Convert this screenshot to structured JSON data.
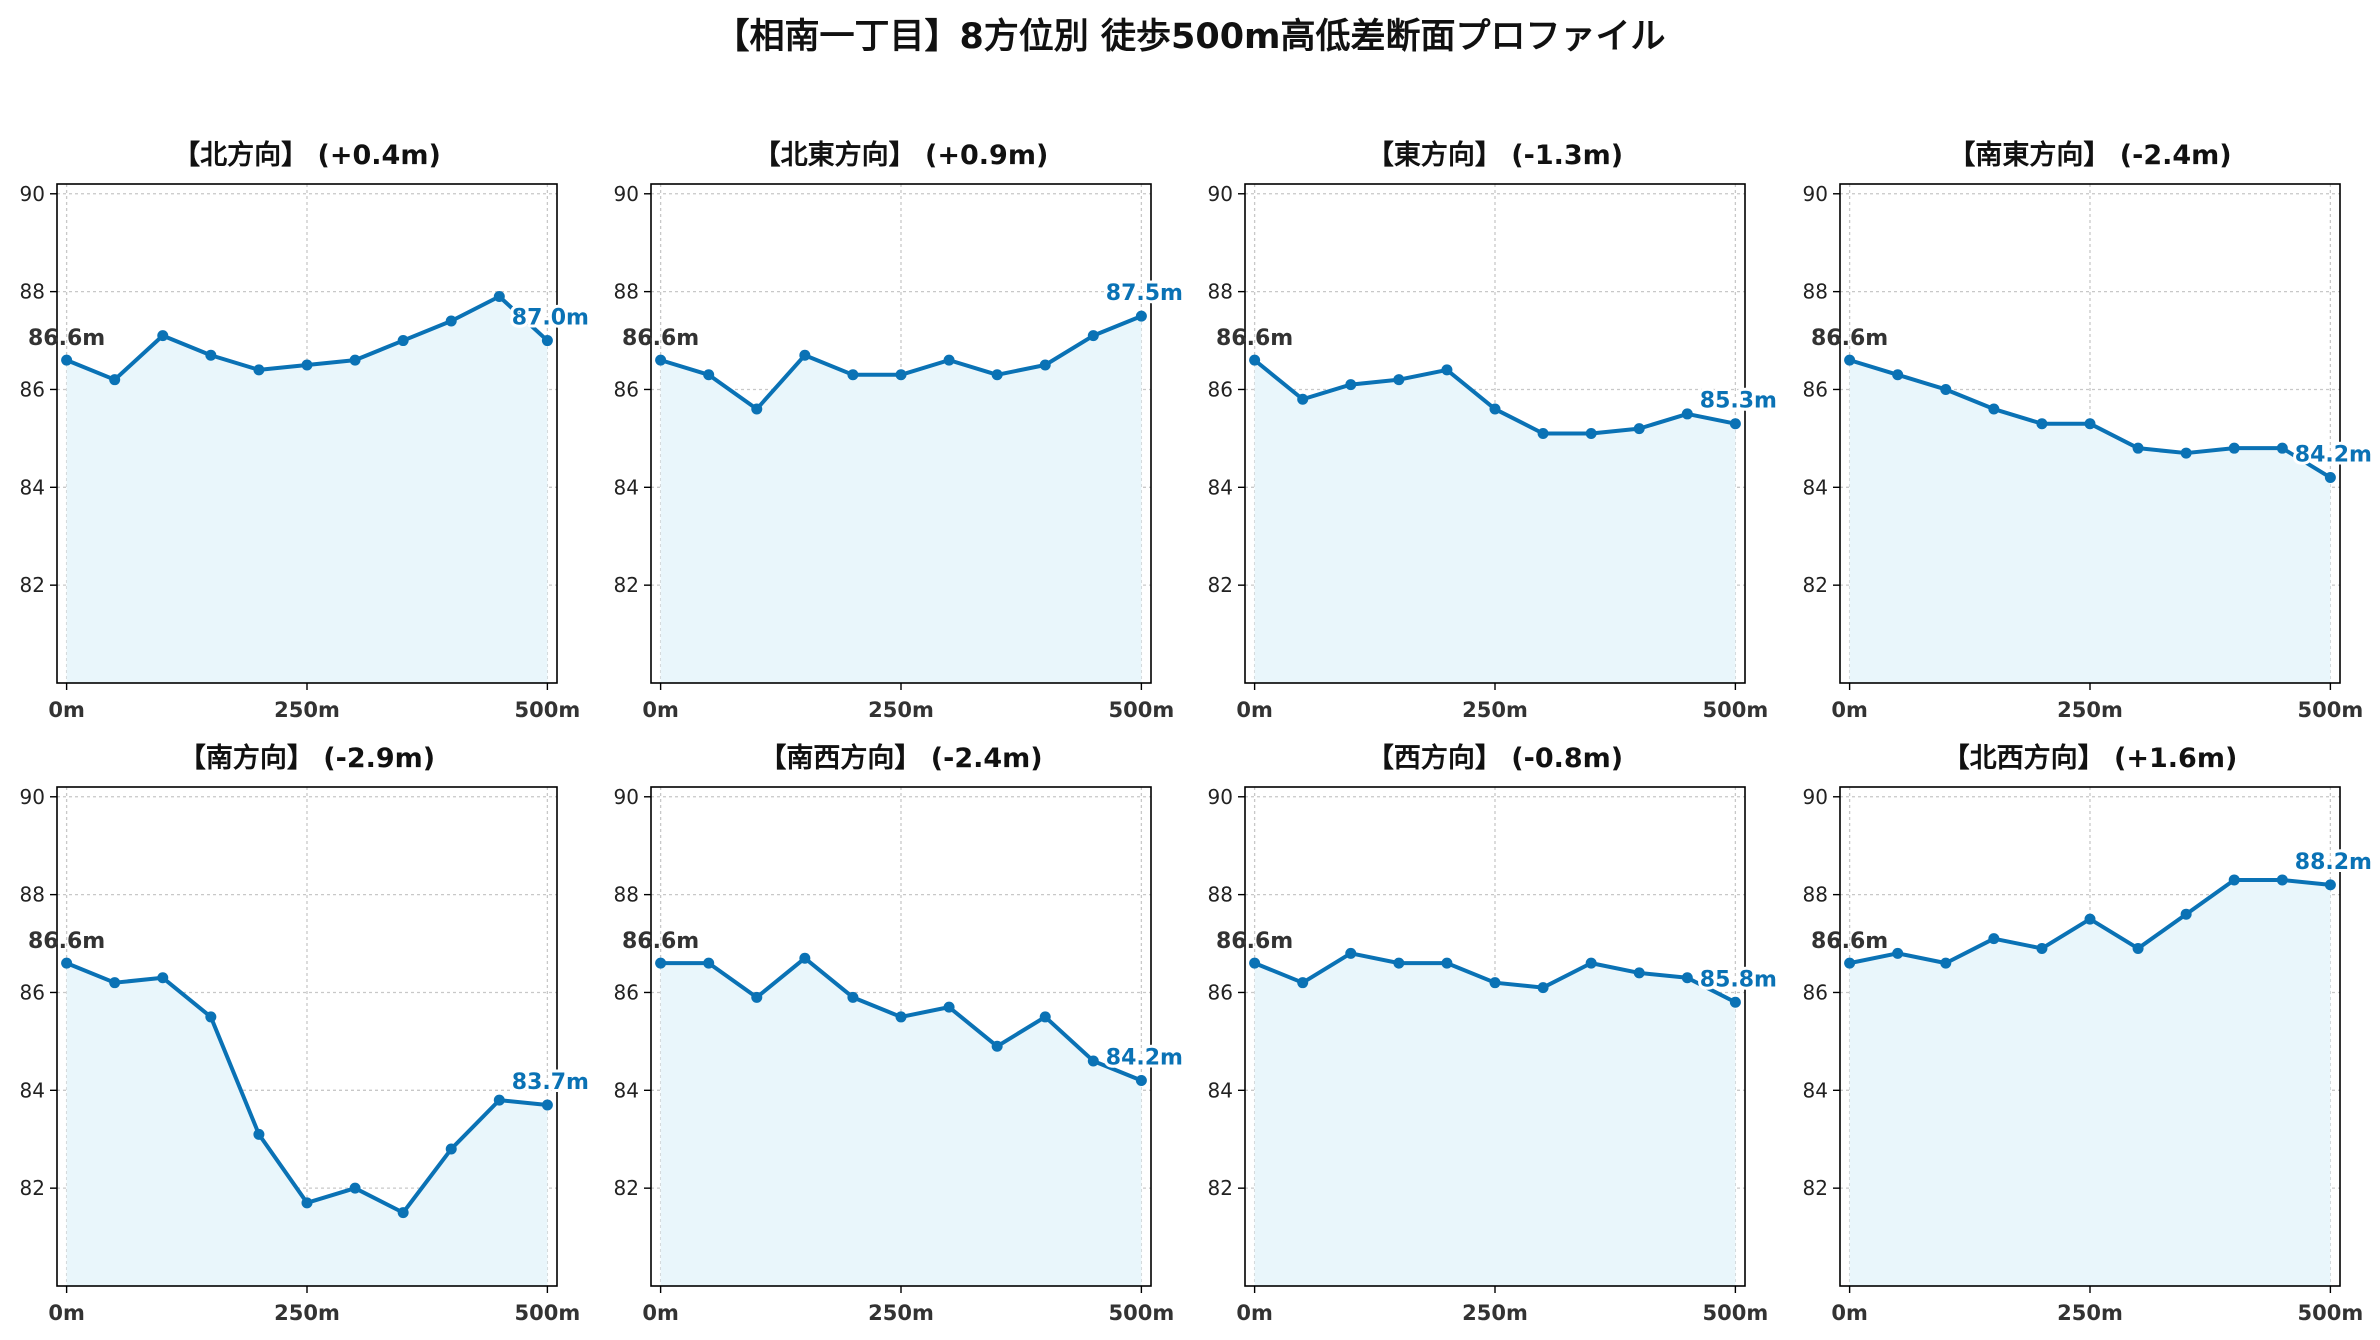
{
  "title": "【相南一丁目】8方位別 徒歩500m高低差断面プロファイル",
  "colors": {
    "line": "#0a72b5",
    "fill": "#e9f6fb",
    "grid": "#c8c8c8",
    "start_label": "#333333"
  },
  "chart_data": [
    {
      "type": "area",
      "title": "【北方向】 (+0.4m)",
      "x": [
        0,
        50,
        100,
        150,
        200,
        250,
        300,
        350,
        400,
        450,
        500
      ],
      "values": [
        86.6,
        86.2,
        87.1,
        86.7,
        86.4,
        86.5,
        86.6,
        87.0,
        87.4,
        87.9,
        87.0
      ],
      "start_label": "86.6m",
      "end_label": "87.0m",
      "xticks": [
        "0m",
        "250m",
        "500m"
      ],
      "yticks": [
        "82",
        "84",
        "86",
        "88",
        "90"
      ],
      "ylim": [
        80,
        90.2
      ],
      "grid": true
    },
    {
      "type": "area",
      "title": "【北東方向】 (+0.9m)",
      "x": [
        0,
        50,
        100,
        150,
        200,
        250,
        300,
        350,
        400,
        450,
        500
      ],
      "values": [
        86.6,
        86.3,
        85.6,
        86.7,
        86.3,
        86.3,
        86.6,
        86.3,
        86.5,
        87.1,
        87.5
      ],
      "start_label": "86.6m",
      "end_label": "87.5m",
      "xticks": [
        "0m",
        "250m",
        "500m"
      ],
      "yticks": [
        "82",
        "84",
        "86",
        "88",
        "90"
      ],
      "ylim": [
        80,
        90.2
      ],
      "grid": true
    },
    {
      "type": "area",
      "title": "【東方向】 (-1.3m)",
      "x": [
        0,
        50,
        100,
        150,
        200,
        250,
        300,
        350,
        400,
        450,
        500
      ],
      "values": [
        86.6,
        85.8,
        86.1,
        86.2,
        86.4,
        85.6,
        85.1,
        85.1,
        85.2,
        85.5,
        85.3
      ],
      "start_label": "86.6m",
      "end_label": "85.3m",
      "xticks": [
        "0m",
        "250m",
        "500m"
      ],
      "yticks": [
        "82",
        "84",
        "86",
        "88",
        "90"
      ],
      "ylim": [
        80,
        90.2
      ],
      "grid": true
    },
    {
      "type": "area",
      "title": "【南東方向】 (-2.4m)",
      "x": [
        0,
        50,
        100,
        150,
        200,
        250,
        300,
        350,
        400,
        450,
        500
      ],
      "values": [
        86.6,
        86.3,
        86.0,
        85.6,
        85.3,
        85.3,
        84.8,
        84.7,
        84.8,
        84.8,
        84.2
      ],
      "start_label": "86.6m",
      "end_label": "84.2m",
      "xticks": [
        "0m",
        "250m",
        "500m"
      ],
      "yticks": [
        "82",
        "84",
        "86",
        "88",
        "90"
      ],
      "ylim": [
        80,
        90.2
      ],
      "grid": true
    },
    {
      "type": "area",
      "title": "【南方向】 (-2.9m)",
      "x": [
        0,
        50,
        100,
        150,
        200,
        250,
        300,
        350,
        400,
        450,
        500
      ],
      "values": [
        86.6,
        86.2,
        86.3,
        85.5,
        83.1,
        81.7,
        82.0,
        81.5,
        82.8,
        83.8,
        83.7
      ],
      "start_label": "86.6m",
      "end_label": "83.7m",
      "xticks": [
        "0m",
        "250m",
        "500m"
      ],
      "yticks": [
        "82",
        "84",
        "86",
        "88",
        "90"
      ],
      "ylim": [
        80,
        90.2
      ],
      "grid": true
    },
    {
      "type": "area",
      "title": "【南西方向】 (-2.4m)",
      "x": [
        0,
        50,
        100,
        150,
        200,
        250,
        300,
        350,
        400,
        450,
        500
      ],
      "values": [
        86.6,
        86.6,
        85.9,
        86.7,
        85.9,
        85.5,
        85.7,
        84.9,
        85.5,
        84.6,
        84.2
      ],
      "start_label": "86.6m",
      "end_label": "84.2m",
      "xticks": [
        "0m",
        "250m",
        "500m"
      ],
      "yticks": [
        "82",
        "84",
        "86",
        "88",
        "90"
      ],
      "ylim": [
        80,
        90.2
      ],
      "grid": true
    },
    {
      "type": "area",
      "title": "【西方向】 (-0.8m)",
      "x": [
        0,
        50,
        100,
        150,
        200,
        250,
        300,
        350,
        400,
        450,
        500
      ],
      "values": [
        86.6,
        86.2,
        86.8,
        86.6,
        86.6,
        86.2,
        86.1,
        86.6,
        86.4,
        86.3,
        85.8
      ],
      "start_label": "86.6m",
      "end_label": "85.8m",
      "xticks": [
        "0m",
        "250m",
        "500m"
      ],
      "yticks": [
        "82",
        "84",
        "86",
        "88",
        "90"
      ],
      "ylim": [
        80,
        90.2
      ],
      "grid": true
    },
    {
      "type": "area",
      "title": "【北西方向】 (+1.6m)",
      "x": [
        0,
        50,
        100,
        150,
        200,
        250,
        300,
        350,
        400,
        450,
        500
      ],
      "values": [
        86.6,
        86.8,
        86.6,
        87.1,
        86.9,
        87.5,
        86.9,
        87.6,
        88.3,
        88.3,
        88.2
      ],
      "start_label": "86.6m",
      "end_label": "88.2m",
      "xticks": [
        "0m",
        "250m",
        "500m"
      ],
      "yticks": [
        "82",
        "84",
        "86",
        "88",
        "90"
      ],
      "ylim": [
        80,
        90.2
      ],
      "grid": true
    }
  ]
}
